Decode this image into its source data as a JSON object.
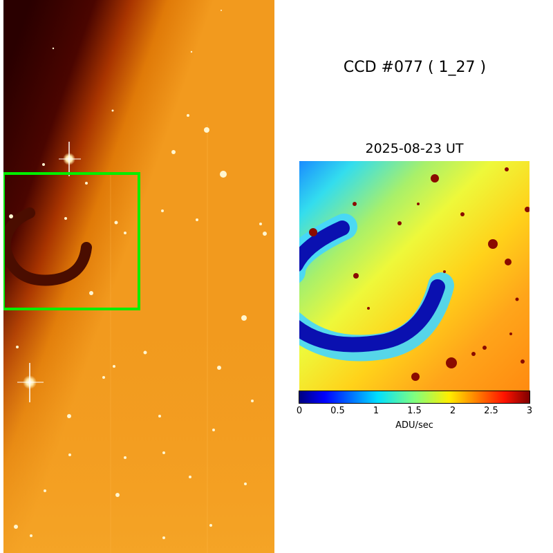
{
  "panel": {
    "title": "CCD #077 ( 1_27 )",
    "date": "2025-08-23 UT"
  },
  "colorbar": {
    "label": "ADU/sec",
    "colormap": "jet",
    "ticks": [
      "0",
      "0.5",
      "1",
      "1.5",
      "2",
      "2.5",
      "3"
    ]
  },
  "colors": {
    "zoom_box": "#00ee00",
    "background": "#ffffff"
  }
}
